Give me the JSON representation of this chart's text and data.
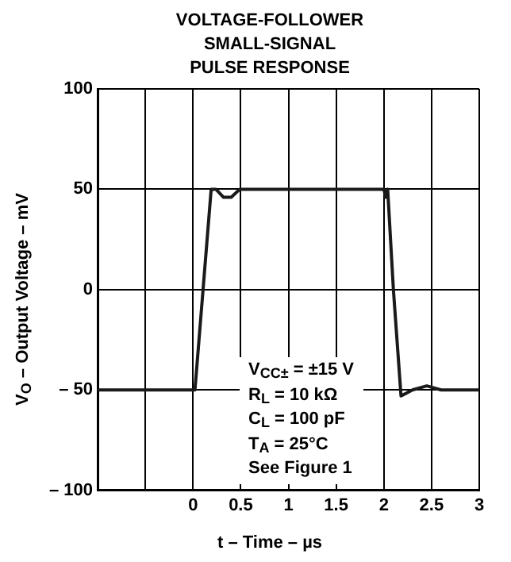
{
  "chart_data": {
    "type": "line",
    "title": "VOLTAGE-FOLLOWER\nSMALL-SIGNAL\nPULSE RESPONSE",
    "xlabel": "t – Time – µs",
    "ylabel": "V$_{O}$ – Output Voltage – mV",
    "x": [
      -1,
      0.02,
      0.19,
      0.24,
      0.32,
      0.4,
      0.49,
      1.0,
      1.5,
      2.0,
      2.02,
      2.04,
      2.1,
      2.18,
      2.3,
      2.45,
      2.6,
      3
    ],
    "series": [
      {
        "color": "#1a1a1a",
        "values": [
          -50,
          -50,
          50,
          50,
          46,
          46,
          50,
          50,
          50,
          50,
          46,
          50,
          0,
          -53,
          -50,
          -48,
          -50,
          -50
        ]
      }
    ],
    "xlim": [
      -1,
      3
    ],
    "xticks": [
      {
        "value": -0.5,
        "label": null
      },
      0,
      0.5,
      1,
      1.5,
      2,
      2.5,
      3
    ],
    "ylim": [
      -100,
      100
    ],
    "yticks": [
      {
        "value": -100,
        "label": "– 100"
      },
      {
        "value": -50,
        "label": "– 50"
      },
      0,
      50,
      100
    ],
    "grid": true,
    "legend": false,
    "marker": "none",
    "line_style": "solid",
    "annotations": [
      "V$_{CC±}$ = ±15 V",
      "R$_{L}$ = 10 kΩ",
      "C$_{L}$ = 100 pF",
      "T$_{A}$ = 25°C",
      "See Figure 1"
    ]
  }
}
